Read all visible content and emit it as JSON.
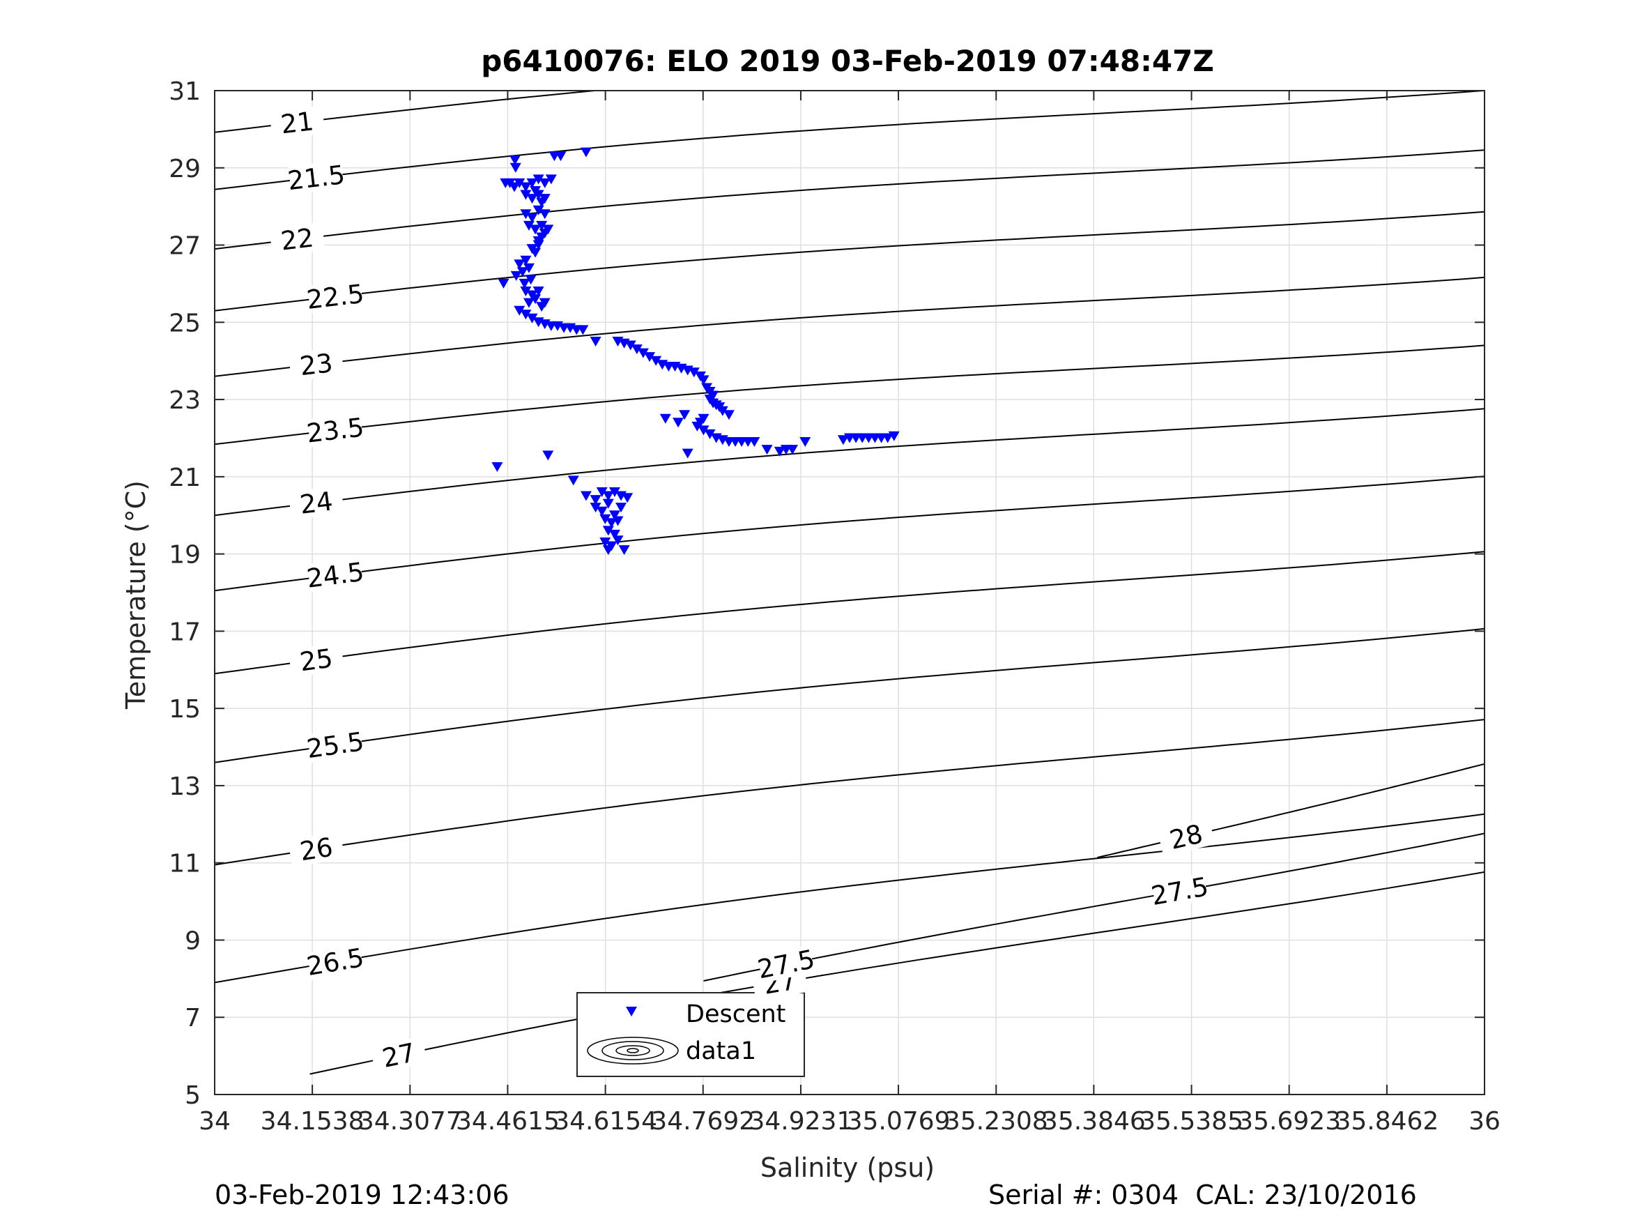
{
  "chart_data": {
    "type": "scatter",
    "title": "p6410076: ELO 2019 03-Feb-2019 07:48:47Z",
    "xlabel": "Salinity (psu)",
    "ylabel": "Temperature (°C)",
    "xlim": [
      34,
      36
    ],
    "ylim": [
      5,
      31
    ],
    "xticks": [
      34,
      34.1538,
      34.3077,
      34.4615,
      34.6154,
      34.7692,
      34.9231,
      35.0769,
      35.2308,
      35.3846,
      35.5385,
      35.6923,
      35.8462,
      36
    ],
    "xtick_labels": [
      "34",
      "34.1538",
      "34.3077",
      "34.4615",
      "34.6154",
      "34.7692",
      "34.9231",
      "35.0769",
      "35.2308",
      "35.3846",
      "35.5385",
      "35.6923",
      "35.8462",
      "36"
    ],
    "yticks": [
      5,
      7,
      9,
      11,
      13,
      15,
      17,
      19,
      21,
      23,
      25,
      27,
      29,
      31
    ],
    "grid": true,
    "legend": {
      "placement": "bottom-center",
      "entries": [
        "Descent",
        "data1"
      ]
    },
    "series": [
      {
        "name": "Descent",
        "marker": "triangle-down",
        "color": "#0000ff",
        "points": [
          [
            34.473,
            29.2
          ],
          [
            34.474,
            29.0
          ],
          [
            34.535,
            29.3
          ],
          [
            34.545,
            29.3
          ],
          [
            34.585,
            29.4
          ],
          [
            34.458,
            28.6
          ],
          [
            34.465,
            28.6
          ],
          [
            34.472,
            28.5
          ],
          [
            34.48,
            28.6
          ],
          [
            34.49,
            28.5
          ],
          [
            34.5,
            28.6
          ],
          [
            34.51,
            28.7
          ],
          [
            34.52,
            28.6
          ],
          [
            34.53,
            28.7
          ],
          [
            34.49,
            28.3
          ],
          [
            34.5,
            28.2
          ],
          [
            34.51,
            28.3
          ],
          [
            34.515,
            28.1
          ],
          [
            34.52,
            28.2
          ],
          [
            34.505,
            28.4
          ],
          [
            34.49,
            27.8
          ],
          [
            34.5,
            27.7
          ],
          [
            34.51,
            27.9
          ],
          [
            34.52,
            27.8
          ],
          [
            34.495,
            27.5
          ],
          [
            34.505,
            27.4
          ],
          [
            34.515,
            27.5
          ],
          [
            34.52,
            27.3
          ],
          [
            34.525,
            27.4
          ],
          [
            34.51,
            27.1
          ],
          [
            34.5,
            26.9
          ],
          [
            34.505,
            26.8
          ],
          [
            34.51,
            27.0
          ],
          [
            34.515,
            27.2
          ],
          [
            34.48,
            26.5
          ],
          [
            34.49,
            26.6
          ],
          [
            34.485,
            26.3
          ],
          [
            34.495,
            26.4
          ],
          [
            34.475,
            26.2
          ],
          [
            34.488,
            26.0
          ],
          [
            34.498,
            26.1
          ],
          [
            34.455,
            26.0
          ],
          [
            34.49,
            25.8
          ],
          [
            34.5,
            25.7
          ],
          [
            34.51,
            25.8
          ],
          [
            34.495,
            25.5
          ],
          [
            34.505,
            25.6
          ],
          [
            34.515,
            25.4
          ],
          [
            34.52,
            25.5
          ],
          [
            34.48,
            25.3
          ],
          [
            34.49,
            25.2
          ],
          [
            34.5,
            25.1
          ],
          [
            34.51,
            25.0
          ],
          [
            34.52,
            24.95
          ],
          [
            34.53,
            24.9
          ],
          [
            34.54,
            24.9
          ],
          [
            34.55,
            24.85
          ],
          [
            34.56,
            24.85
          ],
          [
            34.57,
            24.8
          ],
          [
            34.58,
            24.8
          ],
          [
            34.6,
            24.5
          ],
          [
            34.635,
            24.5
          ],
          [
            34.645,
            24.45
          ],
          [
            34.655,
            24.4
          ],
          [
            34.665,
            24.3
          ],
          [
            34.675,
            24.2
          ],
          [
            34.685,
            24.1
          ],
          [
            34.695,
            24.0
          ],
          [
            34.705,
            23.9
          ],
          [
            34.715,
            23.85
          ],
          [
            34.725,
            23.85
          ],
          [
            34.735,
            23.8
          ],
          [
            34.745,
            23.75
          ],
          [
            34.755,
            23.7
          ],
          [
            34.765,
            23.6
          ],
          [
            34.77,
            23.5
          ],
          [
            34.775,
            23.3
          ],
          [
            34.78,
            23.2
          ],
          [
            34.785,
            23.1
          ],
          [
            34.78,
            23.0
          ],
          [
            34.785,
            22.9
          ],
          [
            34.79,
            22.85
          ],
          [
            34.795,
            22.8
          ],
          [
            34.8,
            22.7
          ],
          [
            34.81,
            22.6
          ],
          [
            34.77,
            22.5
          ],
          [
            34.71,
            22.5
          ],
          [
            34.73,
            22.4
          ],
          [
            34.74,
            22.6
          ],
          [
            34.76,
            22.3
          ],
          [
            34.765,
            22.4
          ],
          [
            34.77,
            22.2
          ],
          [
            34.78,
            22.1
          ],
          [
            34.79,
            22.0
          ],
          [
            34.8,
            21.95
          ],
          [
            34.81,
            21.9
          ],
          [
            34.82,
            21.9
          ],
          [
            34.83,
            21.9
          ],
          [
            34.84,
            21.9
          ],
          [
            34.85,
            21.9
          ],
          [
            34.87,
            21.7
          ],
          [
            34.89,
            21.65
          ],
          [
            34.9,
            21.7
          ],
          [
            34.91,
            21.7
          ],
          [
            34.93,
            21.9
          ],
          [
            34.745,
            21.6
          ],
          [
            34.99,
            21.95
          ],
          [
            35.0,
            22.0
          ],
          [
            35.01,
            22.0
          ],
          [
            35.02,
            22.0
          ],
          [
            35.03,
            22.0
          ],
          [
            35.04,
            22.0
          ],
          [
            35.05,
            22.0
          ],
          [
            35.06,
            22.0
          ],
          [
            35.07,
            22.05
          ],
          [
            34.445,
            21.25
          ],
          [
            34.525,
            21.55
          ],
          [
            34.565,
            20.9
          ],
          [
            34.585,
            20.5
          ],
          [
            34.6,
            20.4
          ],
          [
            34.61,
            20.6
          ],
          [
            34.62,
            20.5
          ],
          [
            34.63,
            20.6
          ],
          [
            34.64,
            20.5
          ],
          [
            34.65,
            20.45
          ],
          [
            34.6,
            20.2
          ],
          [
            34.61,
            20.1
          ],
          [
            34.62,
            20.3
          ],
          [
            34.63,
            20.0
          ],
          [
            34.64,
            20.2
          ],
          [
            34.615,
            19.9
          ],
          [
            34.625,
            19.8
          ],
          [
            34.635,
            19.85
          ],
          [
            34.62,
            19.6
          ],
          [
            34.63,
            19.5
          ],
          [
            34.615,
            19.3
          ],
          [
            34.625,
            19.2
          ],
          [
            34.635,
            19.35
          ],
          [
            34.62,
            19.1
          ],
          [
            34.645,
            19.1
          ]
        ]
      }
    ],
    "density_contours": {
      "levels": [
        {
          "label": "21",
          "slope": 1.4,
          "intercept": 29.92,
          "label_x": 34.13
        },
        {
          "label": "21.5",
          "slope": 1.4,
          "intercept": 28.44,
          "label_x": 34.16
        },
        {
          "label": "22",
          "slope": 1.4,
          "intercept": 26.9,
          "label_x": 34.13
        },
        {
          "label": "22.5",
          "slope": 1.4,
          "intercept": 25.3,
          "label_x": 34.19
        },
        {
          "label": "23",
          "slope": 1.4,
          "intercept": 23.6,
          "label_x": 34.16
        },
        {
          "label": "23.5",
          "slope": 1.4,
          "intercept": 21.84,
          "label_x": 34.19
        },
        {
          "label": "24",
          "slope": 1.5,
          "intercept": 20.0,
          "label_x": 34.16
        },
        {
          "label": "24.5",
          "slope": 1.6,
          "intercept": 18.05,
          "label_x": 34.19
        },
        {
          "label": "25",
          "slope": 1.7,
          "intercept": 15.9,
          "label_x": 34.16
        },
        {
          "label": "25.5",
          "slope": 1.85,
          "intercept": 13.6,
          "label_x": 34.19
        },
        {
          "label": "26",
          "slope": 2.0,
          "intercept": 10.95,
          "label_x": 34.16
        },
        {
          "label": "26.5",
          "slope": 2.3,
          "intercept": 7.9,
          "label_x": 34.19
        },
        {
          "label": "27",
          "slope": 3.0,
          "intercept": 5.0,
          "label_x": 34.29,
          "x_start": 34.15,
          "label_x2": 34.89
        },
        {
          "label": "27.5",
          "slope": 3.5,
          "intercept": 5.0,
          "label_x": 34.9,
          "x_start": 34.77,
          "label_x2": 35.52
        },
        {
          "label": "28",
          "slope": 4.4,
          "intercept": 5.0,
          "label_x": 35.53,
          "x_start": 35.39
        }
      ]
    }
  },
  "footer": {
    "left": "03-Feb-2019 12:43:06",
    "right": "Serial #: 0304  CAL: 23/10/2016"
  }
}
